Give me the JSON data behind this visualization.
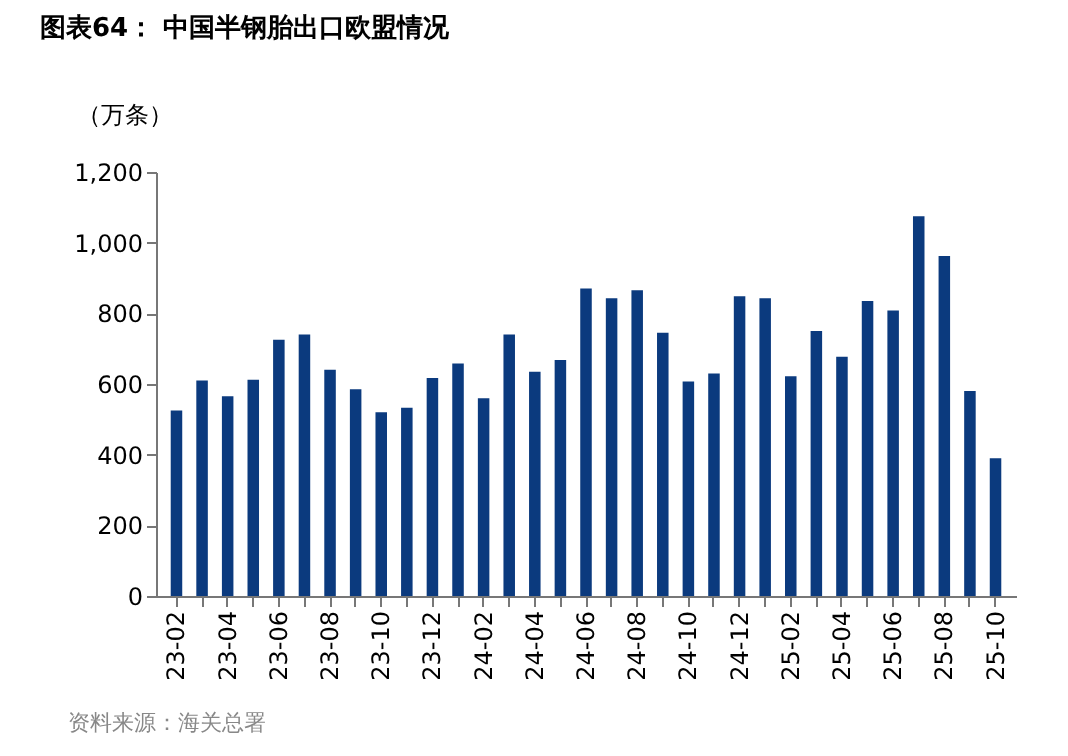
{
  "chart_data": {
    "type": "bar",
    "title": "图表64：  中国半钢胎出口欧盟情况",
    "ylabel": "（万条）",
    "categories": [
      "23-02",
      null,
      "23-04",
      null,
      "23-06",
      null,
      "23-08",
      null,
      "23-10",
      null,
      "23-12",
      null,
      "24-02",
      null,
      "24-04",
      null,
      "24-06",
      null,
      "24-08",
      null,
      "24-10",
      null,
      "24-12",
      null,
      "25-02",
      null,
      "25-04",
      null,
      "25-06",
      null,
      "25-08",
      null,
      "25-10"
    ],
    "values": [
      525,
      610,
      565,
      612,
      725,
      740,
      640,
      585,
      520,
      533,
      617,
      658,
      560,
      740,
      635,
      668,
      870,
      843,
      865,
      745,
      607,
      630,
      848,
      843,
      622,
      750,
      677,
      835,
      808,
      1075,
      962,
      580,
      390
    ],
    "color": "#0b3a7e",
    "ylim": [
      0,
      1200
    ],
    "yticks": [
      0,
      200,
      400,
      600,
      800,
      {
        "value": 1000,
        "label": "1,000"
      },
      {
        "value": 1200,
        "label": "1,200"
      }
    ],
    "grid": false,
    "annotations": [
      "资料来源：海关总署"
    ]
  }
}
